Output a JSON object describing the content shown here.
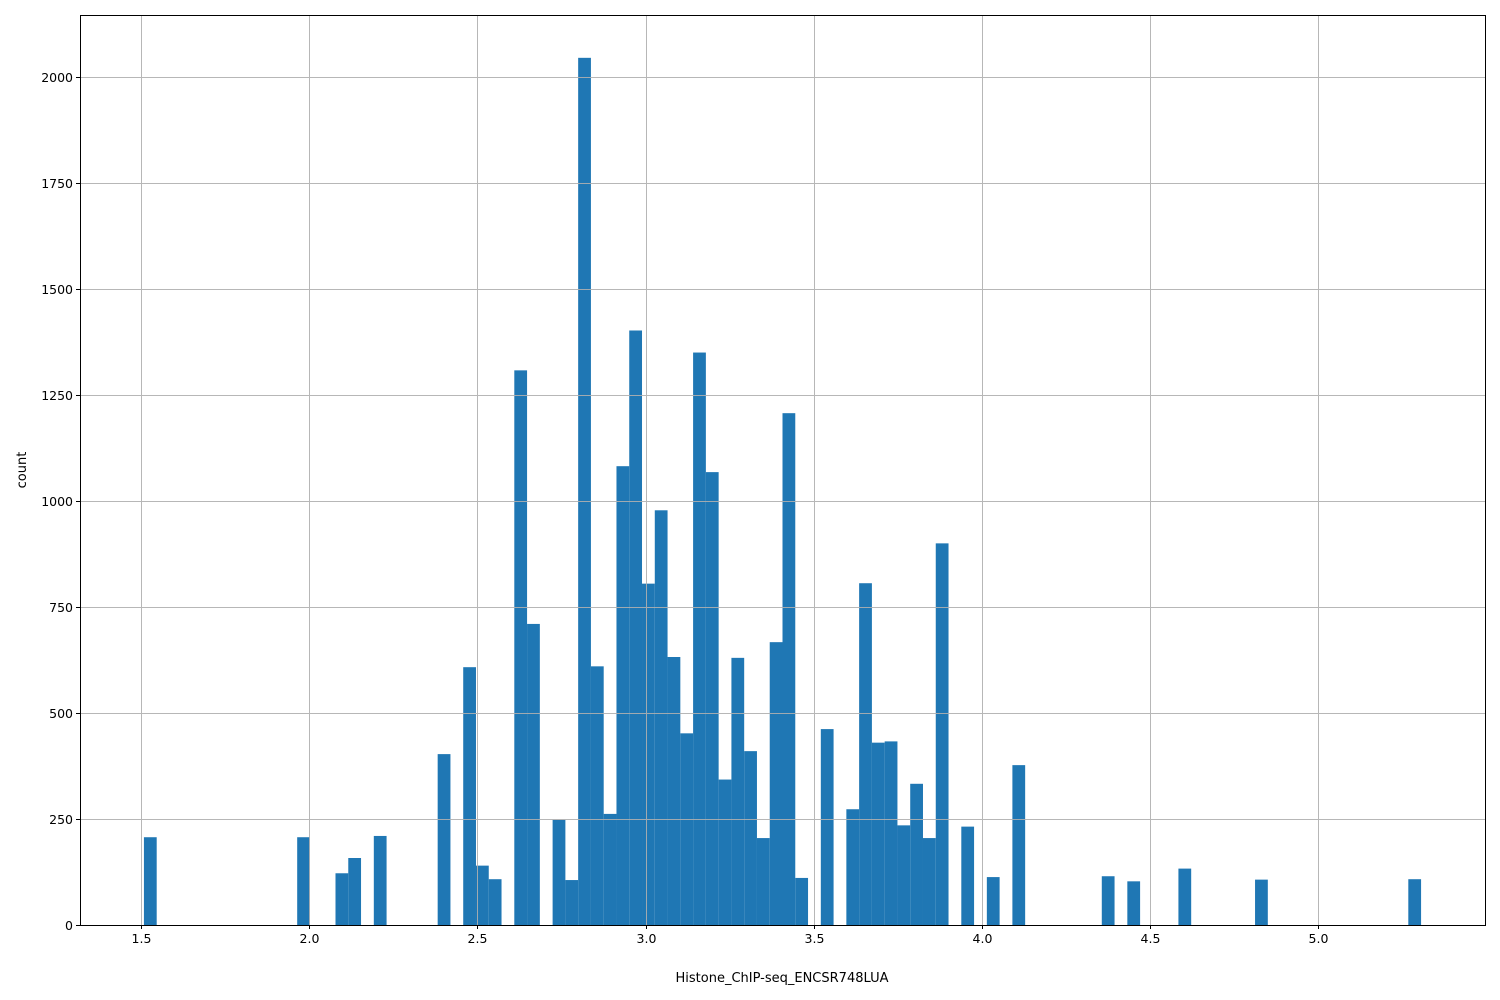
{
  "chart_data": {
    "type": "bar",
    "subtype": "histogram",
    "title": "",
    "xlabel": "Histone_ChIP-seq_ENCSR748LUA",
    "ylabel": "count",
    "bin_range": [
      1.509,
      5.305
    ],
    "bins": 100,
    "counts": [
      207,
      0,
      0,
      0,
      0,
      0,
      0,
      0,
      0,
      0,
      0,
      0,
      207,
      0,
      0,
      122,
      158,
      0,
      210,
      0,
      0,
      0,
      0,
      403,
      0,
      608,
      140,
      108,
      0,
      1308,
      710,
      0,
      248,
      106,
      2045,
      610,
      262,
      1082,
      1402,
      805,
      978,
      632,
      452,
      1350,
      1068,
      343,
      630,
      410,
      205,
      667,
      1207,
      111,
      0,
      462,
      0,
      273,
      806,
      430,
      433,
      235,
      333,
      205,
      900,
      0,
      232,
      0,
      113,
      0,
      377,
      0,
      0,
      0,
      0,
      0,
      0,
      115,
      0,
      103,
      0,
      0,
      0,
      133,
      0,
      0,
      0,
      0,
      0,
      107,
      0,
      0,
      0,
      0,
      0,
      0,
      0,
      0,
      0,
      0,
      0,
      108
    ],
    "xlim": [
      1.319,
      5.495
    ],
    "ylim": [
      0,
      2146
    ],
    "xticks": [
      "1.5",
      "2.0",
      "2.5",
      "3.0",
      "3.5",
      "4.0",
      "4.5",
      "5.0"
    ],
    "yticks": [
      "0",
      "250",
      "500",
      "750",
      "1000",
      "1250",
      "1500",
      "1750",
      "2000"
    ],
    "grid": true,
    "bar_color": "#1f77b4",
    "grid_color": "#b0b0b0"
  }
}
